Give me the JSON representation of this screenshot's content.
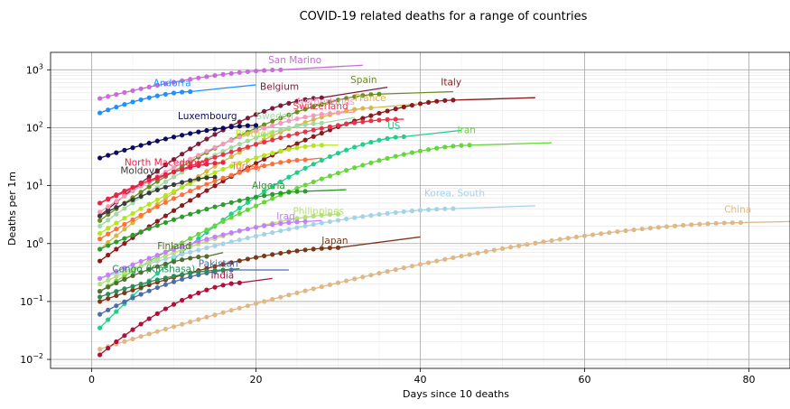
{
  "chart_data": {
    "type": "scatter",
    "title": "COVID-19 related deaths for a range of countries",
    "xlabel": "Days since 10 deaths",
    "ylabel": "Deaths per 1m",
    "xlim": [
      -5,
      85
    ],
    "ylim": [
      0.007,
      2000
    ],
    "yscale": "log",
    "grid": true,
    "x_ticks": [
      {
        "v": 0,
        "t": "0"
      },
      {
        "v": 20,
        "t": "20"
      },
      {
        "v": 40,
        "t": "40"
      },
      {
        "v": 60,
        "t": "60"
      },
      {
        "v": 80,
        "t": "80"
      }
    ],
    "y_ticks": [
      {
        "v": 0.01,
        "base": "10",
        "exp": "−2"
      },
      {
        "v": 0.1,
        "base": "10",
        "exp": "−1"
      },
      {
        "v": 1,
        "base": "10",
        "exp": "0"
      },
      {
        "v": 10,
        "base": "10",
        "exp": "1"
      },
      {
        "v": 100,
        "base": "10",
        "exp": "2"
      },
      {
        "v": 1000,
        "base": "10",
        "exp": "3"
      }
    ],
    "series": [
      {
        "name": "San Marino",
        "color": "#c86dd7",
        "x0": 1,
        "y0": 320,
        "x1": 23,
        "y1": 1000,
        "fit_end": 33,
        "fit_end_y": 1200,
        "lx": 21.5,
        "ly": 1300
      },
      {
        "name": "Andorra",
        "color": "#1e90ff",
        "x0": 1,
        "y0": 180,
        "x1": 12,
        "y1": 420,
        "fit_end": 20,
        "fit_end_y": 550,
        "lx": 7.5,
        "ly": 520
      },
      {
        "name": "Belgium",
        "color": "#7a1c3a",
        "x0": 1,
        "y0": 3,
        "x1": 28,
        "y1": 330,
        "fit_end": 36,
        "fit_end_y": 500,
        "lx": 20.5,
        "ly": 450
      },
      {
        "name": "Spain",
        "color": "#6b8e23",
        "x0": 1,
        "y0": 2.5,
        "x1": 35,
        "y1": 380,
        "fit_end": 44,
        "fit_end_y": 420,
        "lx": 31.5,
        "ly": 590
      },
      {
        "name": "Italy",
        "color": "#8b1a1a",
        "x0": 1,
        "y0": 0.5,
        "x1": 44,
        "y1": 300,
        "fit_end": 54,
        "fit_end_y": 330,
        "lx": 42.5,
        "ly": 540
      },
      {
        "name": "France",
        "color": "#d4b84a",
        "x0": 1,
        "y0": 0.8,
        "x1": 34,
        "y1": 220,
        "fit_end": 40,
        "fit_end_y": 260,
        "lx": 32,
        "ly": 290
      },
      {
        "name": "Luxembourg",
        "color": "#0b0b5e",
        "x0": 1,
        "y0": 30,
        "x1": 20,
        "y1": 110,
        "fit_end": 20,
        "fit_end_y": 110,
        "lx": 10.5,
        "ly": 140
      },
      {
        "name": "Sweden",
        "color": "#a3d9a5",
        "x0": 1,
        "y0": 2,
        "x1": 28,
        "y1": 120,
        "fit_end": 32,
        "fit_end_y": 150,
        "lx": 20,
        "ly": 140
      },
      {
        "name": "Switzerland",
        "color": "#e8344a",
        "x0": 1,
        "y0": 5,
        "x1": 37,
        "y1": 140,
        "fit_end": 38,
        "fit_end_y": 140,
        "lx": 24.5,
        "ly": 210
      },
      {
        "name": "Netherlands",
        "color": "#f59ab8",
        "x0": 1,
        "y0": 3.5,
        "x1": 30,
        "y1": 180,
        "fit_end": 32,
        "fit_end_y": 185,
        "lx": 25,
        "ly": 250
      },
      {
        "name": "Portugal",
        "color": "#b5e61d",
        "x0": 1,
        "y0": 1.5,
        "x1": 28,
        "y1": 50,
        "fit_end": 30,
        "fit_end_y": 50,
        "lx": 17.5,
        "ly": 70
      },
      {
        "name": "US",
        "color": "#1fcf8a",
        "x0": 1,
        "y0": 0.035,
        "x1": 38,
        "y1": 70,
        "fit_end": 45,
        "fit_end_y": 90,
        "lx": 36,
        "ly": 95
      },
      {
        "name": "Iran",
        "color": "#66d63a",
        "x0": 1,
        "y0": 0.15,
        "x1": 46,
        "y1": 50,
        "fit_end": 56,
        "fit_end_y": 55,
        "lx": 44.5,
        "ly": 80
      },
      {
        "name": "North Macedonia",
        "color": "#e8234a",
        "x0": 1,
        "y0": 5,
        "x1": 16,
        "y1": 25,
        "fit_end": 16,
        "fit_end_y": 25,
        "lx": 4,
        "ly": 22
      },
      {
        "name": "Moldova",
        "color": "#3c3c3c",
        "x0": 1,
        "y0": 3,
        "x1": 15,
        "y1": 14,
        "fit_end": 15,
        "fit_end_y": 14,
        "lx": 3.5,
        "ly": 16
      },
      {
        "name": "Turkey",
        "color": "#ff6f3c",
        "x0": 1,
        "y0": 1.2,
        "x1": 26,
        "y1": 28,
        "fit_end": 28,
        "fit_end_y": 30,
        "lx": 17,
        "ly": 19
      },
      {
        "name": "Algeria",
        "color": "#2d9b2d",
        "x0": 1,
        "y0": 0.8,
        "x1": 26,
        "y1": 8,
        "fit_end": 31,
        "fit_end_y": 8.5,
        "lx": 19.5,
        "ly": 8.8
      },
      {
        "name": "Korea, South",
        "color": "#a6d2e8",
        "x0": 1,
        "y0": 0.25,
        "x1": 44,
        "y1": 4,
        "fit_end": 54,
        "fit_end_y": 4.5,
        "lx": 40.5,
        "ly": 6.5
      },
      {
        "name": "China",
        "color": "#deb887",
        "x0": 1,
        "y0": 0.015,
        "x1": 79,
        "y1": 2.3,
        "fit_end": 85,
        "fit_end_y": 2.4,
        "lx": 77,
        "ly": 3.4
      },
      {
        "name": "Philippines",
        "color": "#b7e07a",
        "x0": 1,
        "y0": 0.2,
        "x1": 30,
        "y1": 3.2,
        "fit_end": 30,
        "fit_end_y": 3.2,
        "lx": 24.5,
        "ly": 3.2
      },
      {
        "name": "Iraq",
        "color": "#c77dff",
        "x0": 1,
        "y0": 0.25,
        "x1": 26,
        "y1": 2.4,
        "fit_end": 28,
        "fit_end_y": 2.5,
        "lx": 22.5,
        "ly": 2.6
      },
      {
        "name": "Japan",
        "color": "#7a3a1a",
        "x0": 1,
        "y0": 0.1,
        "x1": 30,
        "y1": 0.85,
        "fit_end": 40,
        "fit_end_y": 1.3,
        "lx": 28,
        "ly": 1.0
      },
      {
        "name": "Finland",
        "color": "#556b2f",
        "x0": 1,
        "y0": 0.15,
        "x1": 14,
        "y1": 0.6,
        "fit_end": 16,
        "fit_end_y": 0.7,
        "lx": 8,
        "ly": 0.8
      },
      {
        "name": "Pakistan",
        "color": "#4b6ea9",
        "x0": 1,
        "y0": 0.06,
        "x1": 17,
        "y1": 0.35,
        "fit_end": 24,
        "fit_end_y": 0.35,
        "lx": 13,
        "ly": 0.4
      },
      {
        "name": "Congo (Kinshasa)",
        "color": "#2e8b57",
        "x0": 1,
        "y0": 0.12,
        "x1": 16,
        "y1": 0.35,
        "fit_end": 18,
        "fit_end_y": 0.37,
        "lx": 2.5,
        "ly": 0.32
      },
      {
        "name": "India",
        "color": "#b0103a",
        "x0": 1,
        "y0": 0.012,
        "x1": 18,
        "y1": 0.21,
        "fit_end": 22,
        "fit_end_y": 0.25,
        "lx": 14.5,
        "ly": 0.25
      }
    ]
  }
}
